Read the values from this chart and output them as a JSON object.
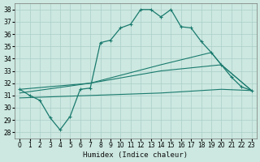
{
  "title": "",
  "xlabel": "Humidex (Indice chaleur)",
  "ylabel": "",
  "bg_color": "#cce8e0",
  "line_color": "#1a7a6e",
  "xlim": [
    -0.5,
    23.5
  ],
  "ylim": [
    27.5,
    38.5
  ],
  "xticks": [
    0,
    1,
    2,
    3,
    4,
    5,
    6,
    7,
    8,
    9,
    10,
    11,
    12,
    13,
    14,
    15,
    16,
    17,
    18,
    19,
    20,
    21,
    22,
    23
  ],
  "yticks": [
    28,
    29,
    30,
    31,
    32,
    33,
    34,
    35,
    36,
    37,
    38
  ],
  "grid_color": "#aacfc8",
  "lines": [
    {
      "x": [
        0,
        1,
        2,
        3,
        4,
        5,
        6,
        7,
        8,
        9,
        10,
        11,
        12,
        13,
        14,
        15,
        16,
        17,
        18,
        19,
        20,
        21,
        22,
        23
      ],
      "y": [
        31.5,
        31.0,
        30.6,
        29.2,
        28.2,
        29.3,
        31.5,
        31.6,
        35.3,
        35.5,
        36.5,
        36.8,
        38.0,
        38.0,
        37.4,
        38.0,
        36.6,
        36.5,
        35.4,
        34.5,
        33.5,
        32.5,
        31.7,
        31.4
      ],
      "has_markers": true
    },
    {
      "x": [
        0,
        7,
        14,
        19,
        20,
        23
      ],
      "y": [
        31.5,
        32.0,
        33.5,
        34.5,
        33.5,
        31.4
      ],
      "has_markers": false
    },
    {
      "x": [
        0,
        7,
        14,
        20,
        23
      ],
      "y": [
        31.2,
        32.0,
        33.0,
        33.5,
        31.4
      ],
      "has_markers": false
    },
    {
      "x": [
        0,
        7,
        14,
        20,
        23
      ],
      "y": [
        30.8,
        31.0,
        31.2,
        31.5,
        31.4
      ],
      "has_markers": false
    }
  ]
}
